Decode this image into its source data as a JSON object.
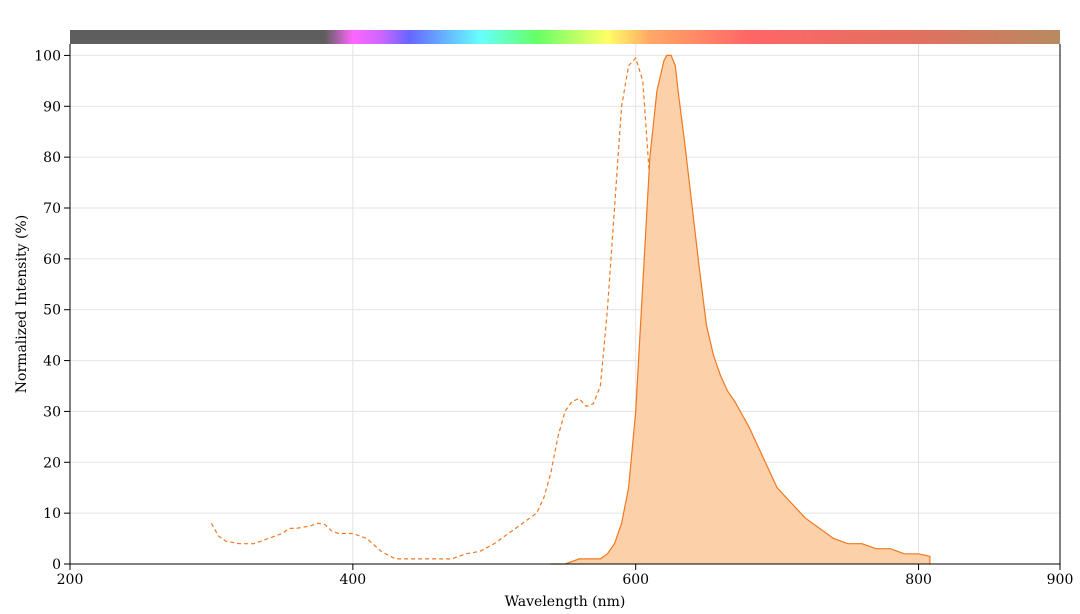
{
  "chart_data": {
    "type": "area",
    "xlabel": "Wavelength (nm)",
    "ylabel": "Normalized Intensity (%)",
    "xlim": [
      200,
      900
    ],
    "ylim": [
      0,
      105
    ],
    "xticks": [
      200,
      400,
      600,
      800,
      900
    ],
    "yticks": [
      0,
      10,
      20,
      30,
      40,
      50,
      60,
      70,
      80,
      90,
      100
    ],
    "grid": true,
    "colors": {
      "line": "#f07820",
      "fill": "#fcd0a8",
      "spectrum_bar_dark": "#5e5e5e"
    },
    "spectrum_bar_stops": [
      {
        "wl": 200,
        "color": "#5e5e5e"
      },
      {
        "wl": 380,
        "color": "#5e5e5e"
      },
      {
        "wl": 400,
        "color": "#ff66ff"
      },
      {
        "wl": 420,
        "color": "#cc66ff"
      },
      {
        "wl": 440,
        "color": "#6666ff"
      },
      {
        "wl": 490,
        "color": "#66ffff"
      },
      {
        "wl": 530,
        "color": "#66ff66"
      },
      {
        "wl": 580,
        "color": "#ffff66"
      },
      {
        "wl": 610,
        "color": "#ffa866"
      },
      {
        "wl": 680,
        "color": "#ff6666"
      },
      {
        "wl": 800,
        "color": "#e07060"
      },
      {
        "wl": 900,
        "color": "#b88a60"
      }
    ],
    "series": [
      {
        "style": "dashed",
        "x": [
          300,
          305,
          310,
          320,
          330,
          340,
          345,
          350,
          355,
          360,
          370,
          375,
          380,
          385,
          390,
          400,
          405,
          410,
          420,
          430,
          440,
          450,
          460,
          470,
          480,
          490,
          500,
          510,
          520,
          530,
          535,
          540,
          545,
          550,
          555,
          560,
          565,
          570,
          575,
          580,
          585,
          590,
          595,
          600,
          605,
          610,
          615,
          620,
          625,
          630,
          635,
          640,
          645,
          650,
          655
        ],
        "y": [
          8,
          5.5,
          4.5,
          4,
          4,
          5,
          5.5,
          6,
          7,
          7,
          7.5,
          8,
          7.8,
          6.5,
          6,
          6,
          5.5,
          5,
          2.5,
          1,
          1,
          1,
          1,
          1,
          2,
          2.5,
          4,
          6,
          8,
          10,
          13,
          18,
          25,
          30,
          32,
          32.5,
          31,
          31.5,
          35,
          50,
          70,
          90,
          98,
          99.5,
          95,
          75,
          50,
          30,
          15,
          8,
          3,
          1.5,
          0.8,
          0.3,
          0
        ]
      },
      {
        "style": "filled",
        "x": [
          540,
          550,
          555,
          560,
          575,
          580,
          585,
          590,
          595,
          600,
          605,
          610,
          615,
          620,
          622,
          625,
          628,
          630,
          635,
          640,
          645,
          650,
          655,
          660,
          665,
          670,
          675,
          680,
          685,
          690,
          695,
          700,
          710,
          720,
          730,
          740,
          750,
          760,
          770,
          780,
          790,
          800,
          808
        ],
        "y": [
          0,
          0,
          0.5,
          1,
          1,
          2,
          4,
          8,
          15,
          30,
          55,
          80,
          93,
          99,
          100,
          100,
          98,
          93,
          82,
          70,
          58,
          47,
          41,
          37,
          34,
          32,
          29.5,
          27,
          24,
          21,
          18,
          15,
          12,
          9,
          7,
          5,
          4,
          4,
          3,
          3,
          2,
          2,
          1.5
        ]
      }
    ]
  }
}
